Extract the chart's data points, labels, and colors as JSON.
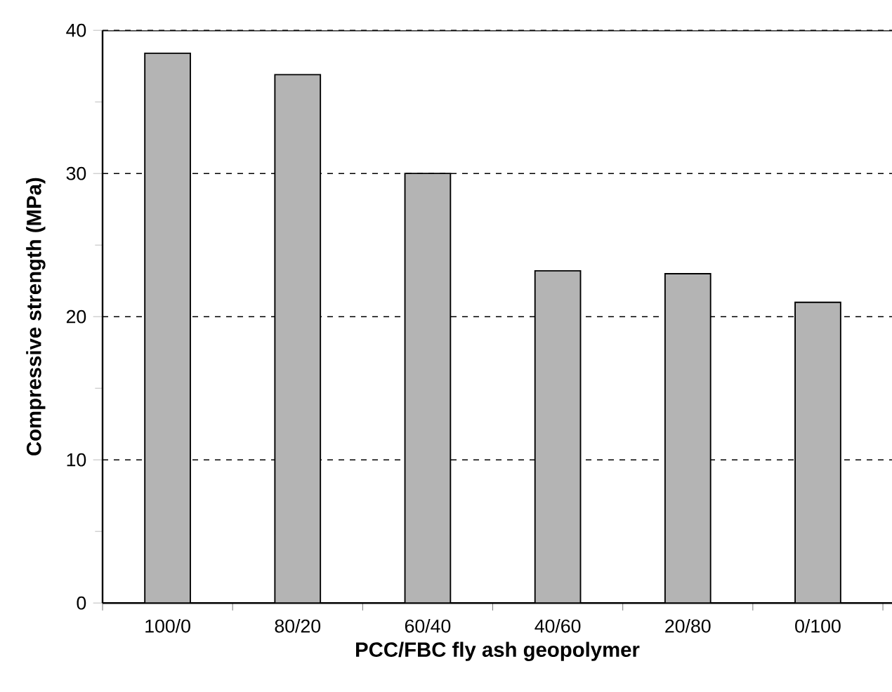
{
  "chart_data": {
    "type": "bar",
    "xlabel": "PCC/FBC fly ash geopolymer",
    "ylabel": "Compressive strength (MPa)",
    "categories": [
      "100/0",
      "80/20",
      "60/40",
      "40/60",
      "20/80",
      "0/100"
    ],
    "values": [
      38.4,
      36.9,
      30.0,
      23.2,
      23.0,
      21.0
    ],
    "color": "#b4b4b4",
    "ylim": [
      0,
      40
    ],
    "yticks": [
      0,
      {
        "value": 5,
        "label": null
      },
      10,
      {
        "value": 15,
        "label": null
      },
      20,
      {
        "value": 25,
        "label": null
      },
      30,
      {
        "value": 35,
        "label": null
      },
      40
    ],
    "grid": "y",
    "legend": false
  }
}
